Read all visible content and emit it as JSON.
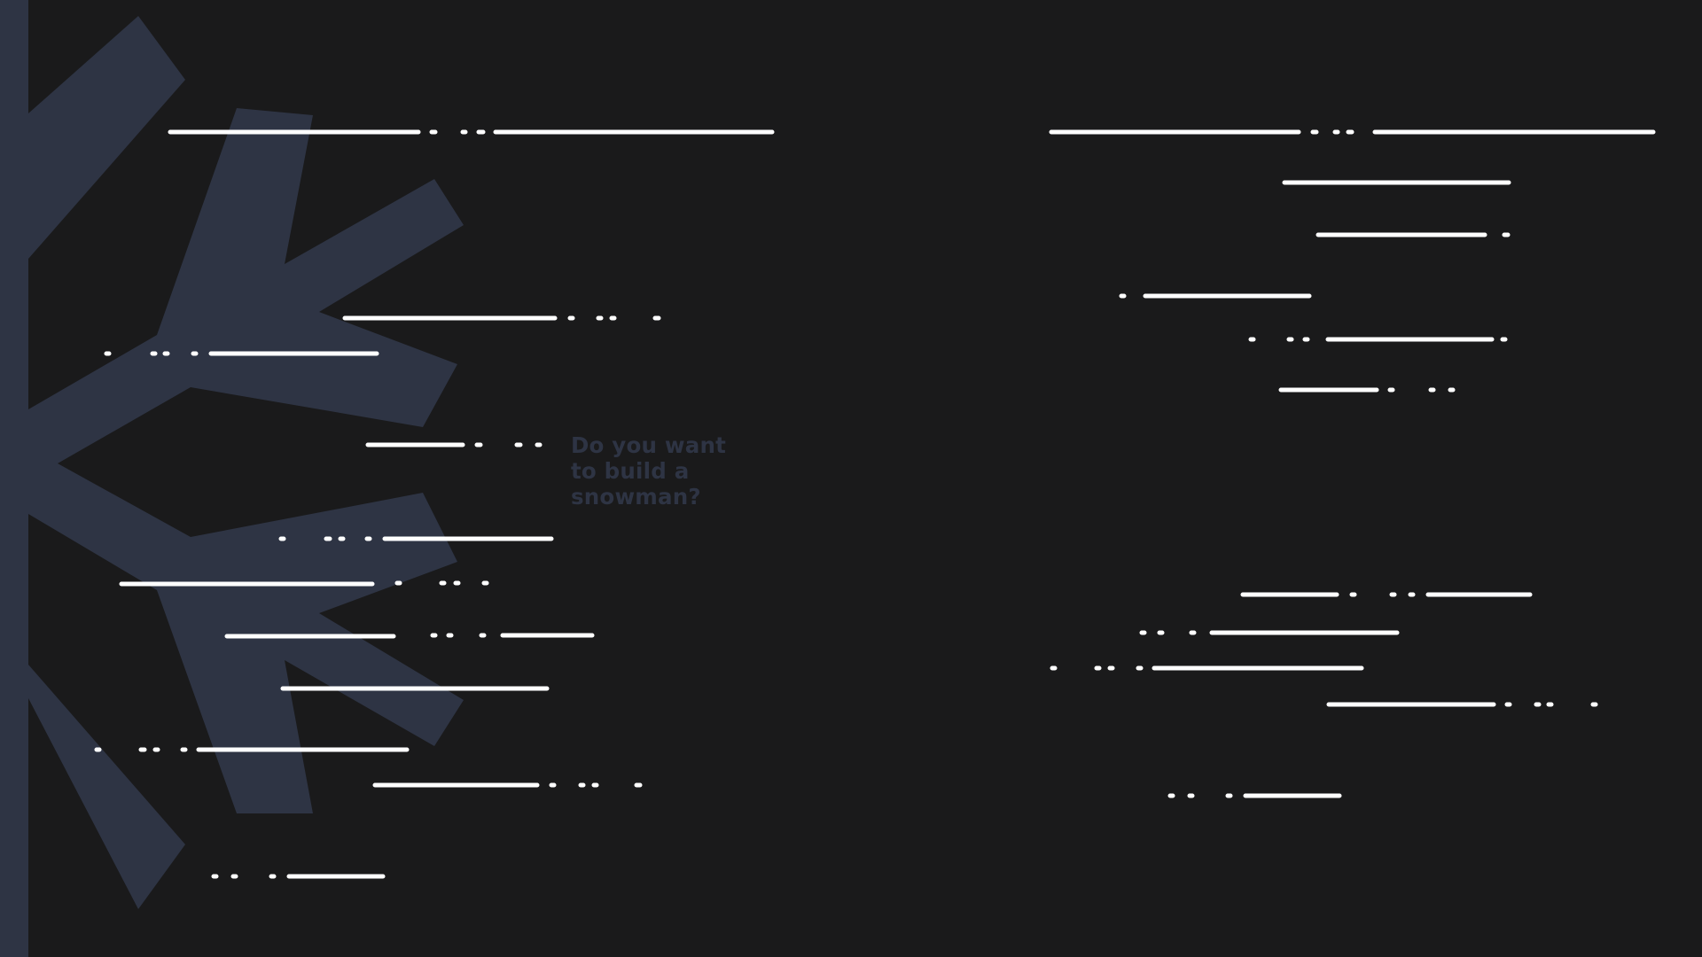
{
  "tagline": "Do you want to build a snowman?",
  "colors": {
    "background": "#1a1a1b",
    "snowflake": "#2e3444",
    "lines": "#ffffff",
    "tagline": "#2e3444"
  },
  "icons": {
    "snowflake": "snowflake-icon"
  }
}
